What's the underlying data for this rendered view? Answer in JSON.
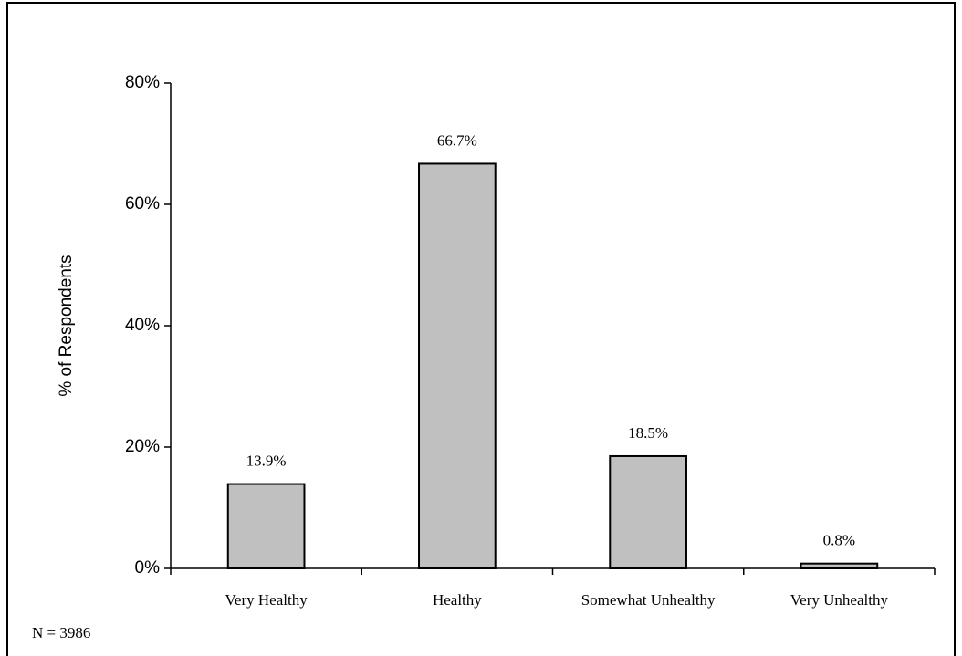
{
  "chart_data": {
    "type": "bar",
    "y_label": "% of Respondents",
    "categories": [
      "Very Healthy",
      "Healthy",
      "Somewhat Unhealthy",
      "Very Unhealthy"
    ],
    "values": [
      13.9,
      66.7,
      18.5,
      0.8
    ],
    "value_labels": [
      "13.9%",
      "66.7%",
      "18.5%",
      "0.8%"
    ],
    "color": "#c0c0c0",
    "ylim": [
      0,
      80
    ],
    "yticks": [
      {
        "value": 0,
        "label": "0%"
      },
      {
        "value": 20,
        "label": "20%"
      },
      {
        "value": 40,
        "label": "40%"
      },
      {
        "value": 60,
        "label": "60%"
      },
      {
        "value": 80,
        "label": "80%"
      }
    ],
    "grid": false,
    "annotation": "N = 3986"
  }
}
